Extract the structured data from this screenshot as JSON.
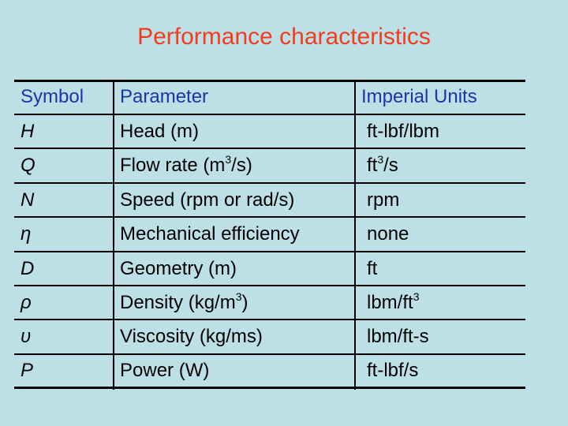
{
  "title": "Performance characteristics",
  "table": {
    "headers": {
      "symbol": "Symbol",
      "parameter": "Parameter",
      "units": "Imperial Units"
    },
    "rows": [
      {
        "symbol": "H",
        "parameter": "Head (m)",
        "units": "ft-lbf/lbm"
      },
      {
        "symbol": "Q",
        "parameter_pre": "Flow rate (m",
        "parameter_sup": "3",
        "parameter_post": "/s)",
        "units_pre": "ft",
        "units_sup": "3",
        "units_post": "/s"
      },
      {
        "symbol": "N",
        "parameter": "Speed (rpm or rad/s)",
        "units": "rpm"
      },
      {
        "symbol": "η",
        "parameter": "Mechanical efficiency",
        "units": "none"
      },
      {
        "symbol": "D",
        "parameter": "Geometry (m)",
        "units": "ft"
      },
      {
        "symbol": "ρ",
        "parameter_pre": "Density (kg/m",
        "parameter_sup": "3",
        "parameter_post": ")",
        "units_pre": "lbm/ft",
        "units_sup": "3",
        "units_post": ""
      },
      {
        "symbol": "υ",
        "parameter": "Viscosity (kg/ms)",
        "units": "lbm/ft-s"
      },
      {
        "symbol": "P",
        "parameter": "Power (W)",
        "units": "ft-lbf/s"
      }
    ]
  }
}
